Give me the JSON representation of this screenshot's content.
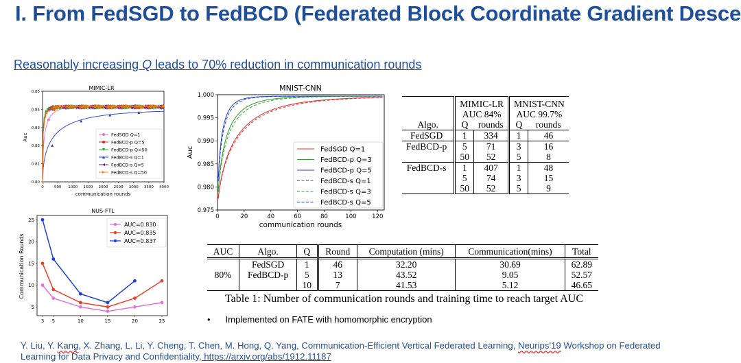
{
  "slide": {
    "title": "I. From FedSGD to FedBCD (Federated Block Coordinate Gradient Descent)",
    "subtitle_pre": "Reasonably increasing ",
    "subtitle_q": "Q",
    "subtitle_post": " leads to 70% reduction in communication rounds",
    "bullet": "Implemented on FATE with homomorphic encryption",
    "ref_line1_pre": "Y. Liu, Y. ",
    "ref_line1_kang": "Kang",
    "ref_line1_mid": ", X. Zhang, L. Li, Y. Cheng, T. Chen, M. Hong, Q. Yang, Communication-Efficient Vertical Federated Learning, ",
    "ref_line1_neurips": "Neurips'19",
    "ref_line1_post": " Workshop on Federated",
    "ref_line2_pre": "Learning for Data Privacy and Confidentiality,",
    "ref_line2_link": " https://arxiv.org/abs/1912.11187"
  },
  "chart_data": [
    {
      "type": "line",
      "title": "MIMIC-LR",
      "xlabel": "communication rounds",
      "ylabel": "Auc",
      "xlim": [
        0,
        4000
      ],
      "ylim": [
        0.8,
        0.85
      ],
      "xticks": [
        "0",
        "500",
        "1000",
        "1500",
        "2000",
        "2500",
        "3000",
        "3500",
        "4000"
      ],
      "yticks": [
        "0.80",
        "0.81",
        "0.82",
        "0.83",
        "0.84",
        "0.85"
      ],
      "legend_position": "lower-right",
      "series": [
        {
          "name": "FedSGD Q=1",
          "color": "#e377c2",
          "marker": "o"
        },
        {
          "name": "FedBCD-p Q=5",
          "color": "#d62728",
          "marker": "o"
        },
        {
          "name": "FedBCD-p Q=50",
          "color": "#2ca02c",
          "marker": "v"
        },
        {
          "name": "FedBCD-s Q=1",
          "color": "#1f3fd6",
          "marker": "^"
        },
        {
          "name": "FedBCD-s Q=5",
          "color": "#6a1f7a",
          "marker": "<"
        },
        {
          "name": "FedBCD-s Q=50",
          "color": "#ff7f0e",
          "marker": ">"
        }
      ]
    },
    {
      "type": "line",
      "title": "MNIST-CNN",
      "xlabel": "communication rounds",
      "ylabel": "Auc",
      "xlim": [
        0,
        125
      ],
      "ylim": [
        0.975,
        1.0
      ],
      "xticks": [
        "0",
        "20",
        "40",
        "60",
        "80",
        "100",
        "120"
      ],
      "yticks": [
        "0.975",
        "0.980",
        "0.985",
        "0.990",
        "0.995",
        "1.000"
      ],
      "legend_position": "lower-right",
      "series": [
        {
          "name": "FedSGD Q=1",
          "color": "#e03030",
          "dash": false
        },
        {
          "name": "FedBCD-p Q=3",
          "color": "#2ca02c",
          "dash": false
        },
        {
          "name": "FedBCD-p Q=5",
          "color": "#1f3fd6",
          "dash": false
        },
        {
          "name": "FedBCD-s Q=1",
          "color": "#e03030",
          "dash": true
        },
        {
          "name": "FedBCD-s Q=3",
          "color": "#2ca02c",
          "dash": true
        },
        {
          "name": "FedBCD-s Q=5",
          "color": "#1f3fd6",
          "dash": true
        }
      ]
    },
    {
      "type": "line",
      "title": "NUS-FTL",
      "xlabel": "",
      "ylabel": "Communication Rounds",
      "x": [
        3,
        5,
        10,
        15,
        20,
        25
      ],
      "xticks": [
        "3",
        "5",
        "10",
        "15",
        "20",
        "25"
      ],
      "yticks": [
        "5",
        "10",
        "15",
        "20",
        "25"
      ],
      "ylim": [
        3,
        26
      ],
      "legend_position": "top-right",
      "series": [
        {
          "name": "AUC=0.830",
          "color": "#d877d8",
          "points": [
            [
              3,
              10
            ],
            [
              5,
              7
            ],
            [
              10,
              5
            ],
            [
              15,
              4
            ],
            [
              20,
              5
            ],
            [
              25,
              6
            ]
          ]
        },
        {
          "name": "AUC=0.835",
          "color": "#e8402a",
          "points": [
            [
              3,
              15
            ],
            [
              5,
              9
            ],
            [
              10,
              6
            ],
            [
              15,
              5
            ],
            [
              20,
              7
            ],
            [
              25,
              11
            ]
          ]
        },
        {
          "name": "AUC=0.837",
          "color": "#1f3fd6",
          "points": [
            [
              3,
              25
            ],
            [
              5,
              16
            ],
            [
              10,
              8
            ],
            [
              15,
              6
            ],
            [
              20,
              11
            ]
          ]
        }
      ]
    },
    {
      "type": "table",
      "header1": [
        "",
        "MIMIC-LR",
        "MNIST-CNN"
      ],
      "header2": [
        "",
        "AUC 84%",
        "AUC 99.7%"
      ],
      "header3": [
        "Algo.",
        "Q",
        "rounds",
        "Q",
        "rounds"
      ],
      "rows": [
        {
          "algo": "FedSGD",
          "q1": [
            "1"
          ],
          "r1": [
            "334"
          ],
          "q2": [
            "1"
          ],
          "r2": [
            "46"
          ]
        },
        {
          "algo": "FedBCD-p",
          "q1": [
            "5",
            "50"
          ],
          "r1": [
            "71",
            "52"
          ],
          "q2": [
            "3",
            "5"
          ],
          "r2": [
            "16",
            "8"
          ]
        },
        {
          "algo": "FedBCD-s",
          "q1": [
            "1",
            "5",
            "50"
          ],
          "r1": [
            "407",
            "74",
            "52"
          ],
          "q2": [
            "1",
            "3",
            "5"
          ],
          "r2": [
            "48",
            "15",
            "9"
          ]
        }
      ]
    },
    {
      "type": "table",
      "columns": [
        "AUC",
        "Algo.",
        "Q",
        "Round",
        "Computation (mins)",
        "Communication(mins)",
        "Total"
      ],
      "auc": "80%",
      "rows": [
        [
          "FedSGD",
          "1",
          "46",
          "32.20",
          "30.69",
          "62.89"
        ],
        [
          "FedBCD-p",
          "5",
          "13",
          "43.52",
          "9.05",
          "52.57"
        ],
        [
          "",
          "10",
          "7",
          "41.53",
          "5.12",
          "46.65"
        ]
      ],
      "caption": "Table 1: Number of communication rounds and training time to reach target AUC"
    }
  ]
}
